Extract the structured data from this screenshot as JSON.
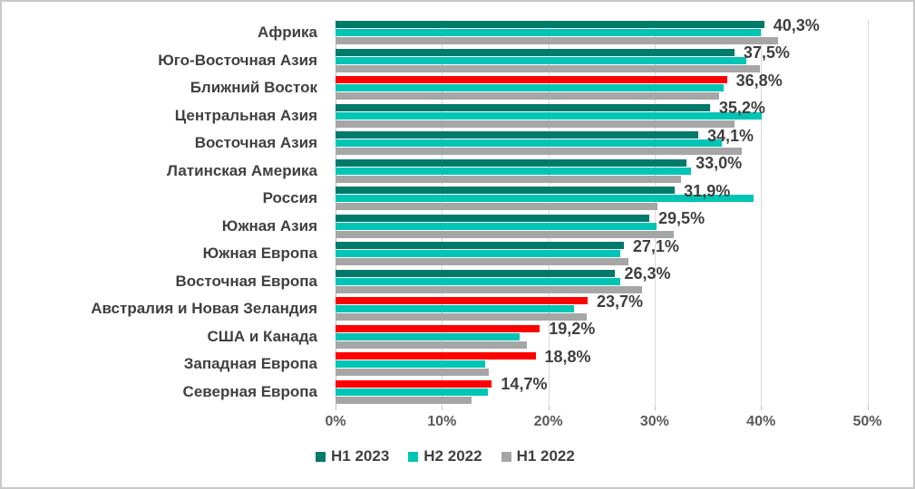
{
  "chart_data": {
    "type": "bar",
    "orientation": "horizontal",
    "title": "",
    "xlabel": "",
    "ylabel": "",
    "xlim": [
      0,
      50
    ],
    "x_ticks": [
      "0%",
      "10%",
      "20%",
      "30%",
      "40%",
      "50%"
    ],
    "x_tick_values": [
      0,
      10,
      20,
      30,
      40,
      50
    ],
    "grid": "vertical",
    "legend_position": "bottom",
    "number_format": "decimal-comma-percent",
    "categories": [
      "Африка",
      "Юго-Восточная Азия",
      "Ближний Восток",
      "Центральная Азия",
      "Восточная Азия",
      "Латинская Америка",
      "Россия",
      "Южная Азия",
      "Южная Европа",
      "Восточная Европа",
      "Австралия и Новая Зеландия",
      "США и Канада",
      "Западная Европа",
      "Северная Европа"
    ],
    "series": [
      {
        "name": "H1 2023",
        "color": "#007a6a",
        "highlight_color": "#ff0000",
        "highlighted_rows": [
          2,
          10,
          11,
          12,
          13
        ],
        "values": [
          40.3,
          37.5,
          36.8,
          35.2,
          34.1,
          33.0,
          31.9,
          29.5,
          27.1,
          26.3,
          23.7,
          19.2,
          18.8,
          14.7
        ],
        "data_labels": [
          "40,3%",
          "37,5%",
          "36,8%",
          "35,2%",
          "34,1%",
          "33,0%",
          "31,9%",
          "29,5%",
          "27,1%",
          "26,3%",
          "23,7%",
          "19,2%",
          "18,8%",
          "14,7%"
        ]
      },
      {
        "name": "H2 2022",
        "color": "#00c5b4",
        "values": [
          40.0,
          38.6,
          36.5,
          40.1,
          36.3,
          33.4,
          39.3,
          30.2,
          26.8,
          26.8,
          22.4,
          17.3,
          14.1,
          14.3
        ]
      },
      {
        "name": "H1 2022",
        "color": "#a6a6a6",
        "values": [
          41.6,
          39.9,
          36.1,
          37.5,
          38.2,
          32.5,
          30.3,
          31.8,
          27.5,
          28.8,
          23.6,
          18.0,
          14.4,
          12.8
        ]
      }
    ],
    "colors": {
      "grid": "#d9d9d9",
      "zero_axis": "#bfbfbf",
      "category_text": "#404040",
      "data_label_text": "#3f3f3f",
      "axis_tick_text": "#595959",
      "background": "#ffffff",
      "border": "#c9c9c9"
    }
  }
}
